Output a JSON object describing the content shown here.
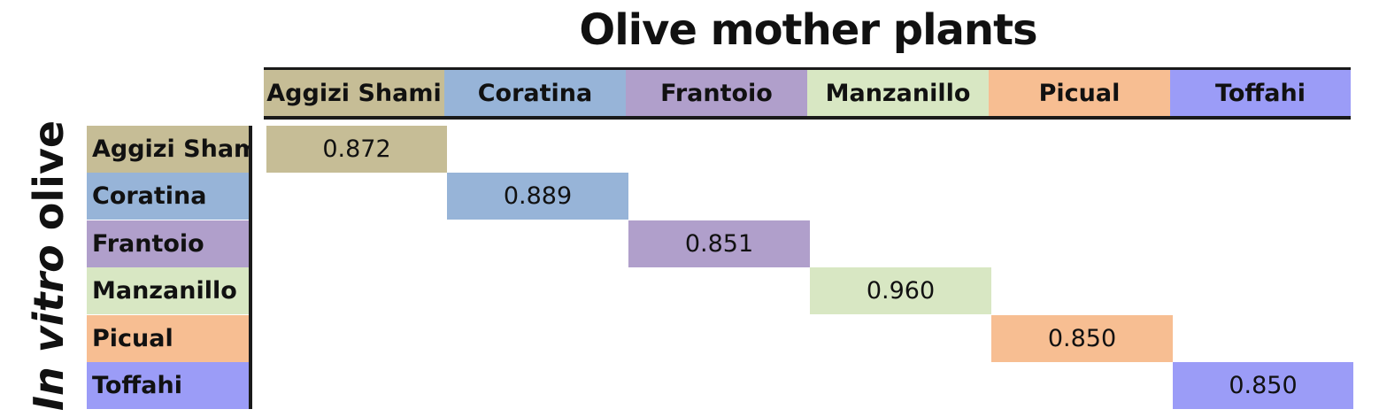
{
  "chart_data": {
    "type": "heatmap",
    "title": "Olive mother plants",
    "ylabel_italic": "In vitro",
    "ylabel_plain": "olive",
    "columns": [
      "Aggizi Shami",
      "Coratina",
      "Frantoio",
      "Manzanillo",
      "Picual",
      "Toffahi"
    ],
    "rows": [
      "Aggizi Shami",
      "Coratina",
      "Frantoio",
      "Manzanillo",
      "Picual",
      "Toffahi"
    ],
    "diagonal_values": [
      "0.872",
      "0.889",
      "0.851",
      "0.960",
      "0.850",
      "0.850"
    ],
    "colors": [
      "#c6bd96",
      "#97b4d8",
      "#b09fcb",
      "#d8e7c3",
      "#f7be92",
      "#9b9cf7"
    ]
  }
}
